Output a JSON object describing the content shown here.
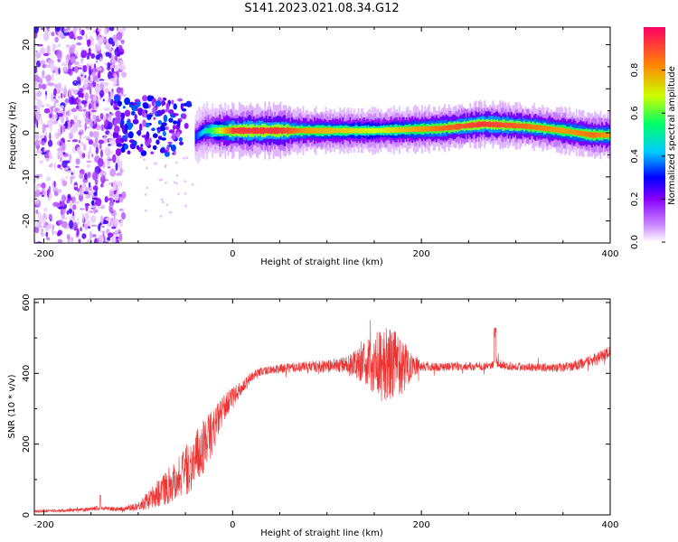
{
  "title": "S141.2023.021.08.34.G12",
  "chart_data": [
    {
      "type": "heatmap",
      "xlabel": "Height of straight line (km)",
      "ylabel": "Frequency (Hz)",
      "xlim": [
        -210,
        400
      ],
      "ylim": [
        -25,
        24
      ],
      "x_ticks": [
        "-200",
        "0",
        "200",
        "400"
      ],
      "y_ticks": [
        "-20",
        "-10",
        "0",
        "10",
        "20"
      ],
      "colorbar": {
        "label": "Normalized spectral amplitude",
        "range": [
          0,
          1
        ],
        "ticks": [
          "0.0",
          "0.2",
          "0.4",
          "0.6",
          "0.8"
        ],
        "colors": [
          "#ffffff",
          "#cc88ff",
          "#8800ff",
          "#0000ff",
          "#00ccff",
          "#00ff66",
          "#ccff00",
          "#ff8800",
          "#ff0066"
        ]
      },
      "ridge": [
        {
          "x": -120,
          "freq": 4,
          "amp": 0.25
        },
        {
          "x": -100,
          "freq": 0,
          "amp": 0.3
        },
        {
          "x": -80,
          "freq": 3,
          "amp": 0.3
        },
        {
          "x": -60,
          "freq": 4,
          "amp": 0.3
        },
        {
          "x": -45,
          "freq": 1.5,
          "amp": 0.35
        },
        {
          "x": -40,
          "freq": -1,
          "amp": 0.4
        },
        {
          "x": -30,
          "freq": 0.5,
          "amp": 0.55
        },
        {
          "x": 0,
          "freq": 0.5,
          "amp": 0.95
        },
        {
          "x": 50,
          "freq": 0.5,
          "amp": 0.95
        },
        {
          "x": 80,
          "freq": 0.5,
          "amp": 0.85
        },
        {
          "x": 120,
          "freq": 0.5,
          "amp": 0.8
        },
        {
          "x": 150,
          "freq": 0.5,
          "amp": 0.75
        },
        {
          "x": 220,
          "freq": 1,
          "amp": 0.9
        },
        {
          "x": 265,
          "freq": 2,
          "amp": 0.95
        },
        {
          "x": 310,
          "freq": 1.5,
          "amp": 0.9
        },
        {
          "x": 350,
          "freq": 0.5,
          "amp": 0.85
        },
        {
          "x": 380,
          "freq": -0.5,
          "amp": 0.9
        },
        {
          "x": 400,
          "freq": -0.5,
          "amp": 0.85
        }
      ]
    },
    {
      "type": "line",
      "xlabel": "Height of straight line (km)",
      "ylabel": "SNR (10 * v/v)",
      "xlim": [
        -210,
        400
      ],
      "ylim": [
        0,
        610
      ],
      "x_ticks": [
        "-200",
        "0",
        "200",
        "400"
      ],
      "y_ticks": [
        "0",
        "200",
        "400",
        "600"
      ],
      "color": "#ee3333",
      "series": [
        {
          "x": [
            -210,
            -180,
            -150,
            -140,
            -120,
            -100,
            -90,
            -80,
            -60,
            -40,
            -30,
            -20,
            -10,
            0,
            10,
            20,
            30,
            40,
            60,
            80,
            100,
            120,
            140,
            150,
            160,
            170,
            180,
            190,
            200,
            220,
            250,
            270,
            280,
            290,
            300,
            320,
            340,
            360,
            380,
            400
          ],
          "y": [
            10,
            12,
            15,
            20,
            15,
            25,
            40,
            60,
            100,
            150,
            200,
            240,
            300,
            330,
            360,
            390,
            405,
            410,
            415,
            420,
            420,
            425,
            430,
            430,
            420,
            430,
            420,
            425,
            420,
            418,
            420,
            420,
            430,
            420,
            420,
            418,
            415,
            420,
            435,
            460
          ],
          "spread": [
            4,
            4,
            6,
            6,
            6,
            12,
            25,
            40,
            60,
            80,
            80,
            60,
            40,
            30,
            20,
            15,
            12,
            12,
            14,
            16,
            18,
            22,
            60,
            90,
            110,
            100,
            80,
            40,
            15,
            12,
            12,
            12,
            12,
            12,
            12,
            12,
            12,
            14,
            16,
            18
          ]
        }
      ]
    }
  ]
}
